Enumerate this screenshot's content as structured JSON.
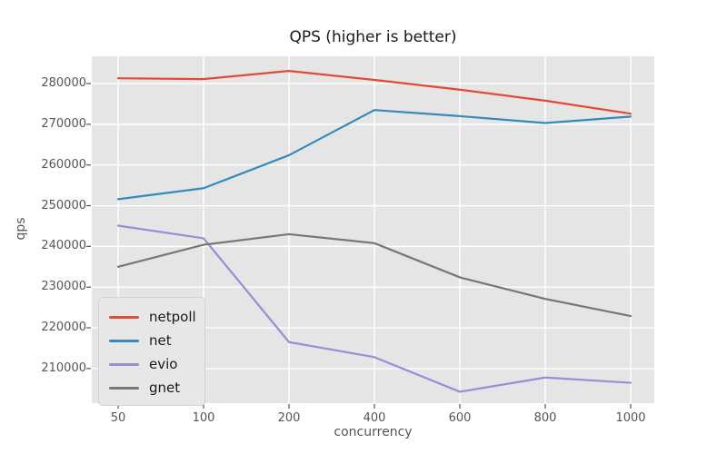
{
  "chart_data": {
    "type": "line",
    "title": "QPS (higher is better)",
    "xlabel": "concurrency",
    "ylabel": "qps",
    "x_tick_labels": [
      "50",
      "100",
      "200",
      "400",
      "600",
      "800",
      "1000"
    ],
    "x_values": [
      50,
      100,
      200,
      400,
      600,
      800,
      1000
    ],
    "x_spacing": "even",
    "y_ticks": [
      210000,
      220000,
      230000,
      240000,
      250000,
      260000,
      270000,
      280000
    ],
    "ylim": [
      201500,
      286700
    ],
    "grid": true,
    "legend_position": "lower-left",
    "series": [
      {
        "name": "netpoll",
        "color": "#E24A33",
        "values": [
          281300,
          281100,
          283100,
          280900,
          278500,
          275800,
          272600
        ]
      },
      {
        "name": "net",
        "color": "#348ABD",
        "values": [
          251600,
          254300,
          262400,
          273500,
          272000,
          270300,
          271900
        ]
      },
      {
        "name": "evio",
        "color": "#988ED5",
        "values": [
          245100,
          242000,
          216500,
          212800,
          204300,
          207800,
          206500
        ]
      },
      {
        "name": "gnet",
        "color": "#777777",
        "values": [
          235000,
          240400,
          243000,
          240800,
          232400,
          227100,
          222900
        ]
      }
    ],
    "colors": {
      "figure_background": "#FFFFFF",
      "plot_background": "#E5E5E5",
      "grid": "#FFFFFF",
      "tick_text": "#555555",
      "title_text": "#1A1A1A"
    }
  }
}
